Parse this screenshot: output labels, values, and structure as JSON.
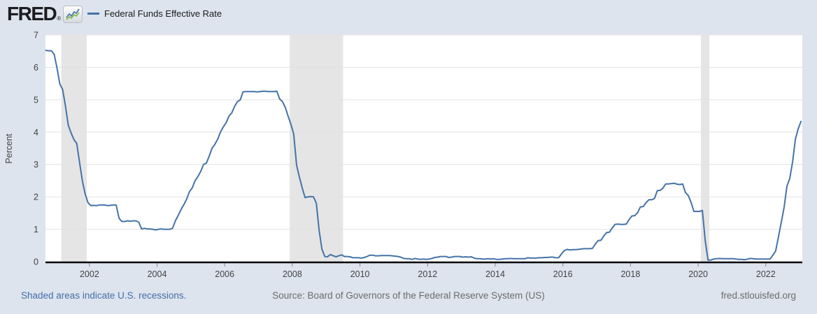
{
  "header": {
    "logo_text": "FRED",
    "logo_reg": "®"
  },
  "legend": {
    "label": "Federal Funds Effective Rate"
  },
  "footer": {
    "recessions_note": "Shaded areas indicate U.S. recessions.",
    "source": "Source: Board of Governors of the Federal Reserve System (US)",
    "site": "fred.stlouisfed.org"
  },
  "colors": {
    "page_bg": "#dde4ee",
    "plot_bg": "#ffffff",
    "recession_band": "#e5e5e5",
    "gridline": "#e2e2e2",
    "line": "#4573a7",
    "axis": "#000000",
    "tick": "#888888",
    "link_blue": "#436ea5",
    "icon_line_green": "#7ab648"
  },
  "chart_data": {
    "type": "line",
    "title": "Federal Funds Effective Rate",
    "xlabel": "",
    "ylabel": "Percent",
    "ylim": [
      0,
      7
    ],
    "y_ticks": [
      0,
      1,
      2,
      3,
      4,
      5,
      6,
      7
    ],
    "x_ticks": [
      2002,
      2004,
      2006,
      2008,
      2010,
      2012,
      2014,
      2016,
      2018,
      2020,
      2022
    ],
    "x_range": [
      2000.7,
      2023.08
    ],
    "grid": "horizontal",
    "legend_position": "top-left",
    "recessions_shaded": [
      [
        2001.17,
        2001.92
      ],
      [
        2007.92,
        2009.5
      ],
      [
        2020.08,
        2020.33
      ]
    ],
    "series": [
      {
        "name": "Federal Funds Effective Rate",
        "units": "Percent",
        "frequency": "monthly",
        "start": "2000-09",
        "end": "2023-01",
        "values": [
          6.52,
          6.51,
          6.51,
          6.4,
          5.98,
          5.49,
          5.31,
          4.8,
          4.21,
          3.97,
          3.77,
          3.65,
          3.07,
          2.49,
          2.09,
          1.82,
          1.73,
          1.74,
          1.73,
          1.75,
          1.75,
          1.75,
          1.73,
          1.74,
          1.75,
          1.75,
          1.34,
          1.24,
          1.24,
          1.26,
          1.25,
          1.26,
          1.26,
          1.22,
          1.01,
          1.03,
          1.01,
          1.01,
          1.0,
          0.98,
          1.0,
          1.01,
          1.0,
          1.0,
          1.0,
          1.03,
          1.26,
          1.43,
          1.61,
          1.76,
          1.93,
          2.16,
          2.28,
          2.5,
          2.63,
          2.79,
          3.0,
          3.04,
          3.26,
          3.5,
          3.62,
          3.78,
          4.0,
          4.16,
          4.29,
          4.49,
          4.59,
          4.79,
          4.94,
          4.99,
          5.24,
          5.25,
          5.25,
          5.25,
          5.25,
          5.24,
          5.25,
          5.26,
          5.26,
          5.25,
          5.25,
          5.25,
          5.26,
          5.02,
          4.94,
          4.76,
          4.49,
          4.24,
          3.94,
          2.98,
          2.61,
          2.28,
          1.98,
          2.0,
          2.01,
          2.0,
          1.81,
          0.97,
          0.39,
          0.16,
          0.15,
          0.22,
          0.18,
          0.15,
          0.18,
          0.21,
          0.16,
          0.16,
          0.15,
          0.12,
          0.12,
          0.12,
          0.11,
          0.13,
          0.16,
          0.2,
          0.2,
          0.18,
          0.18,
          0.19,
          0.19,
          0.19,
          0.19,
          0.18,
          0.17,
          0.16,
          0.14,
          0.1,
          0.09,
          0.09,
          0.07,
          0.1,
          0.08,
          0.07,
          0.08,
          0.07,
          0.08,
          0.1,
          0.13,
          0.14,
          0.16,
          0.16,
          0.16,
          0.13,
          0.14,
          0.16,
          0.16,
          0.16,
          0.14,
          0.15,
          0.14,
          0.15,
          0.11,
          0.09,
          0.09,
          0.08,
          0.08,
          0.09,
          0.08,
          0.09,
          0.07,
          0.07,
          0.08,
          0.09,
          0.09,
          0.1,
          0.09,
          0.09,
          0.09,
          0.09,
          0.09,
          0.12,
          0.11,
          0.11,
          0.11,
          0.12,
          0.12,
          0.13,
          0.13,
          0.14,
          0.14,
          0.12,
          0.12,
          0.24,
          0.34,
          0.38,
          0.36,
          0.37,
          0.37,
          0.38,
          0.39,
          0.4,
          0.4,
          0.4,
          0.41,
          0.54,
          0.65,
          0.66,
          0.79,
          0.9,
          0.91,
          1.04,
          1.15,
          1.16,
          1.15,
          1.15,
          1.16,
          1.3,
          1.41,
          1.42,
          1.51,
          1.69,
          1.7,
          1.82,
          1.91,
          1.91,
          1.95,
          2.19,
          2.2,
          2.27,
          2.4,
          2.4,
          2.41,
          2.42,
          2.39,
          2.38,
          2.4,
          2.13,
          2.04,
          1.83,
          1.55,
          1.55,
          1.55,
          1.58,
          0.65,
          0.05,
          0.05,
          0.08,
          0.09,
          0.1,
          0.09,
          0.09,
          0.09,
          0.09,
          0.09,
          0.08,
          0.07,
          0.07,
          0.06,
          0.08,
          0.1,
          0.09,
          0.08,
          0.08,
          0.08,
          0.08,
          0.08,
          0.08,
          0.2,
          0.33,
          0.77,
          1.21,
          1.68,
          2.33,
          2.56,
          3.08,
          3.78,
          4.1,
          4.33
        ]
      }
    ]
  }
}
